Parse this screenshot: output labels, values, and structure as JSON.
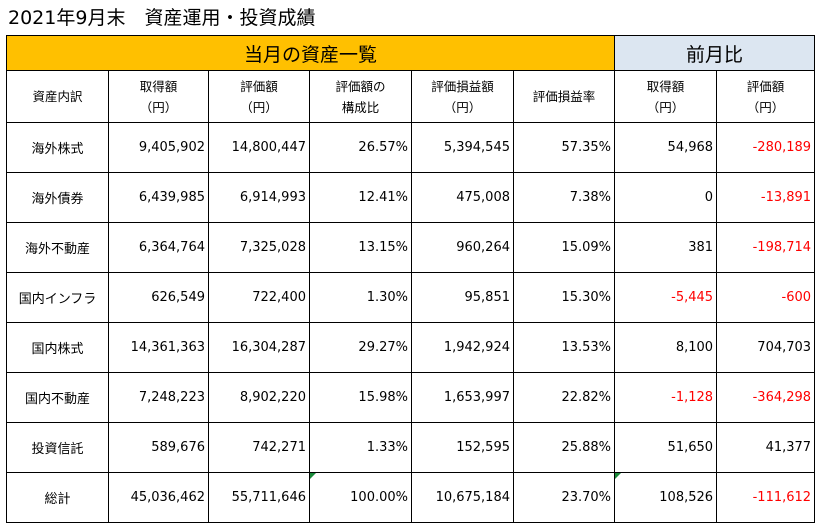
{
  "title": "2021年9月末　資産運用・投資成績",
  "banner": {
    "current": "当月の資産一覧",
    "previous": "前月比"
  },
  "headers": [
    [
      "資産内訳"
    ],
    [
      "取得額",
      "（円）"
    ],
    [
      "評価額",
      "（円）"
    ],
    [
      "評価額の",
      "構成比"
    ],
    [
      "評価損益額",
      "（円）"
    ],
    [
      "評価損益率"
    ],
    [
      "取得額",
      "（円）"
    ],
    [
      "評価額",
      "（円）"
    ]
  ],
  "rows": [
    {
      "label": "海外株式",
      "cost": "9,405,902",
      "value": "14,800,447",
      "ratio": "26.57%",
      "pl": "5,394,545",
      "pl_rate": "57.35%",
      "d_cost": "54,968",
      "d_value": "-280,189"
    },
    {
      "label": "海外債券",
      "cost": "6,439,985",
      "value": "6,914,993",
      "ratio": "12.41%",
      "pl": "475,008",
      "pl_rate": "7.38%",
      "d_cost": "0",
      "d_value": "-13,891"
    },
    {
      "label": "海外不動産",
      "cost": "6,364,764",
      "value": "7,325,028",
      "ratio": "13.15%",
      "pl": "960,264",
      "pl_rate": "15.09%",
      "d_cost": "381",
      "d_value": "-198,714"
    },
    {
      "label": "国内インフラ",
      "cost": "626,549",
      "value": "722,400",
      "ratio": "1.30%",
      "pl": "95,851",
      "pl_rate": "15.30%",
      "d_cost": "-5,445",
      "d_value": "-600"
    },
    {
      "label": "国内株式",
      "cost": "14,361,363",
      "value": "16,304,287",
      "ratio": "29.27%",
      "pl": "1,942,924",
      "pl_rate": "13.53%",
      "d_cost": "8,100",
      "d_value": "704,703"
    },
    {
      "label": "国内不動産",
      "cost": "7,248,223",
      "value": "8,902,220",
      "ratio": "15.98%",
      "pl": "1,653,997",
      "pl_rate": "22.82%",
      "d_cost": "-1,128",
      "d_value": "-364,298"
    },
    {
      "label": "投資信託",
      "cost": "589,676",
      "value": "742,271",
      "ratio": "1.33%",
      "pl": "152,595",
      "pl_rate": "25.88%",
      "d_cost": "51,650",
      "d_value": "41,377"
    },
    {
      "label": "総計",
      "cost": "45,036,462",
      "value": "55,711,646",
      "ratio": "100.00%",
      "pl": "10,675,184",
      "pl_rate": "23.70%",
      "d_cost": "108,526",
      "d_value": "-111,612"
    }
  ],
  "colors": {
    "banner_current": "#ffc000",
    "banner_previous": "#dce6f1",
    "negative": "#ff0000",
    "comment_marker": "#1a8a3a"
  }
}
